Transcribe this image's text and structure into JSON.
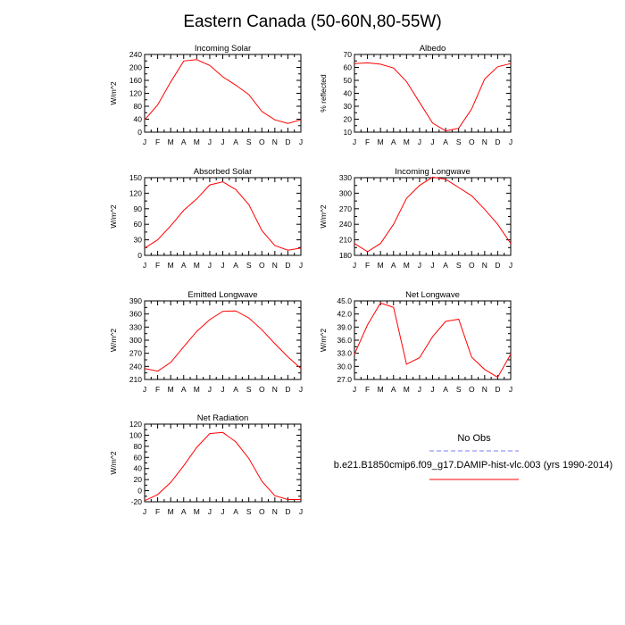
{
  "page": {
    "title": "Eastern Canada (50-60N,80-55W)"
  },
  "legend": {
    "entries": [
      {
        "label": "No Obs",
        "color": "#7b7bff",
        "dashed": true
      },
      {
        "label": "b.e21.B1850cmip6.f09_g17.DAMIP-hist-vlc.003 (yrs 1990-2014)",
        "color": "#ff0000",
        "dashed": false
      }
    ]
  },
  "chart_data": [
    {
      "type": "line",
      "title": "Incoming Solar",
      "ylabel": "W/m^2",
      "categories": [
        "J",
        "F",
        "M",
        "A",
        "M",
        "J",
        "J",
        "A",
        "S",
        "O",
        "N",
        "D",
        "J"
      ],
      "ylim": [
        0,
        240
      ],
      "yticks": [
        "0",
        "20",
        "40",
        "60",
        "80",
        "100",
        "120",
        "140",
        "160",
        "180",
        "200",
        "220",
        "240"
      ],
      "ytick_labels": [
        "0",
        "40",
        "80",
        "120",
        "160",
        "200",
        "240"
      ],
      "series": [
        {
          "color": "#ff0000",
          "values": [
            38,
            84,
            155,
            220,
            224,
            206,
            171,
            145,
            116,
            64,
            38,
            27,
            38
          ]
        }
      ]
    },
    {
      "type": "line",
      "title": "Albedo",
      "ylabel": "% reflected",
      "categories": [
        "J",
        "F",
        "M",
        "A",
        "M",
        "J",
        "J",
        "A",
        "S",
        "O",
        "N",
        "D",
        "J"
      ],
      "ylim": [
        10,
        70
      ],
      "yticks": [
        "10",
        "15",
        "20",
        "25",
        "30",
        "35",
        "40",
        "45",
        "50",
        "55",
        "60",
        "65",
        "70"
      ],
      "ytick_labels": [
        "10",
        "20",
        "30",
        "40",
        "50",
        "60",
        "70"
      ],
      "series": [
        {
          "color": "#ff0000",
          "values": [
            63,
            63.5,
            62.5,
            59.5,
            49,
            33,
            17,
            11,
            13,
            28,
            51,
            60.5,
            63
          ]
        }
      ]
    },
    {
      "type": "line",
      "title": "Absorbed Solar",
      "ylabel": "W/m^2",
      "categories": [
        "J",
        "F",
        "M",
        "A",
        "M",
        "J",
        "J",
        "A",
        "S",
        "O",
        "N",
        "D",
        "J"
      ],
      "ylim": [
        0,
        150
      ],
      "yticks": [
        "0",
        "15",
        "30",
        "45",
        "60",
        "75",
        "90",
        "105",
        "120",
        "135",
        "150"
      ],
      "ytick_labels": [
        "0",
        "30",
        "60",
        "90",
        "120",
        "150"
      ],
      "series": [
        {
          "color": "#ff0000",
          "values": [
            14,
            30,
            57,
            87,
            109,
            136,
            142,
            127,
            98,
            48,
            19,
            10,
            14
          ]
        }
      ]
    },
    {
      "type": "line",
      "title": "Incoming Longwave",
      "ylabel": "W/m^2",
      "categories": [
        "J",
        "F",
        "M",
        "A",
        "M",
        "J",
        "J",
        "A",
        "S",
        "O",
        "N",
        "D",
        "J"
      ],
      "ylim": [
        180,
        330
      ],
      "yticks": [
        "180",
        "195",
        "210",
        "225",
        "240",
        "255",
        "270",
        "285",
        "300",
        "315",
        "330"
      ],
      "ytick_labels": [
        "180",
        "210",
        "240",
        "270",
        "300",
        "330"
      ],
      "series": [
        {
          "color": "#ff0000",
          "values": [
            203,
            187,
            203,
            240,
            290,
            315,
            331,
            327,
            311,
            295,
            269,
            240,
            203
          ]
        }
      ]
    },
    {
      "type": "line",
      "title": "Emitted Longwave",
      "ylabel": "W/m^2",
      "categories": [
        "J",
        "F",
        "M",
        "A",
        "M",
        "J",
        "J",
        "A",
        "S",
        "O",
        "N",
        "D",
        "J"
      ],
      "ylim": [
        210,
        390
      ],
      "yticks": [
        "210",
        "225",
        "240",
        "255",
        "270",
        "285",
        "300",
        "315",
        "330",
        "345",
        "360",
        "375",
        "390"
      ],
      "ytick_labels": [
        "210",
        "240",
        "270",
        "300",
        "330",
        "360",
        "390"
      ],
      "series": [
        {
          "color": "#ff0000",
          "values": [
            235,
            229,
            249,
            285,
            320,
            347,
            366,
            367,
            351,
            324,
            292,
            262,
            235
          ]
        }
      ]
    },
    {
      "type": "line",
      "title": "Net Longwave",
      "ylabel": "W/m^2",
      "categories": [
        "J",
        "F",
        "M",
        "A",
        "M",
        "J",
        "J",
        "A",
        "S",
        "O",
        "N",
        "D",
        "J"
      ],
      "ylim": [
        27,
        45
      ],
      "yticks": [
        "27.0",
        "28.5",
        "30.0",
        "31.5",
        "33.0",
        "34.5",
        "36.0",
        "37.5",
        "39.0",
        "40.5",
        "42.0",
        "43.5",
        "45.0"
      ],
      "ytick_labels": [
        "27.0",
        "30.0",
        "33.0",
        "36.0",
        "39.0",
        "42.0",
        "45.0"
      ],
      "series": [
        {
          "color": "#ff0000",
          "values": [
            32.8,
            39.5,
            44.5,
            43.5,
            30.5,
            32.0,
            36.8,
            40.3,
            40.8,
            32.1,
            29.3,
            27.5,
            32.8
          ]
        }
      ]
    },
    {
      "type": "line",
      "title": "Net Radiation",
      "ylabel": "W/m^2",
      "categories": [
        "J",
        "F",
        "M",
        "A",
        "M",
        "J",
        "J",
        "A",
        "S",
        "O",
        "N",
        "D",
        "J"
      ],
      "ylim": [
        -20,
        120
      ],
      "yticks": [
        "-20",
        "-10",
        "0",
        "10",
        "20",
        "30",
        "40",
        "50",
        "60",
        "70",
        "80",
        "90",
        "100",
        "110",
        "120"
      ],
      "ytick_labels": [
        "-20",
        "0",
        "20",
        "40",
        "60",
        "80",
        "100",
        "120"
      ],
      "series": [
        {
          "color": "#ff0000",
          "values": [
            -18,
            -7,
            15,
            45,
            78,
            103,
            105,
            88,
            58,
            17,
            -9,
            -16,
            -16
          ]
        }
      ]
    }
  ]
}
